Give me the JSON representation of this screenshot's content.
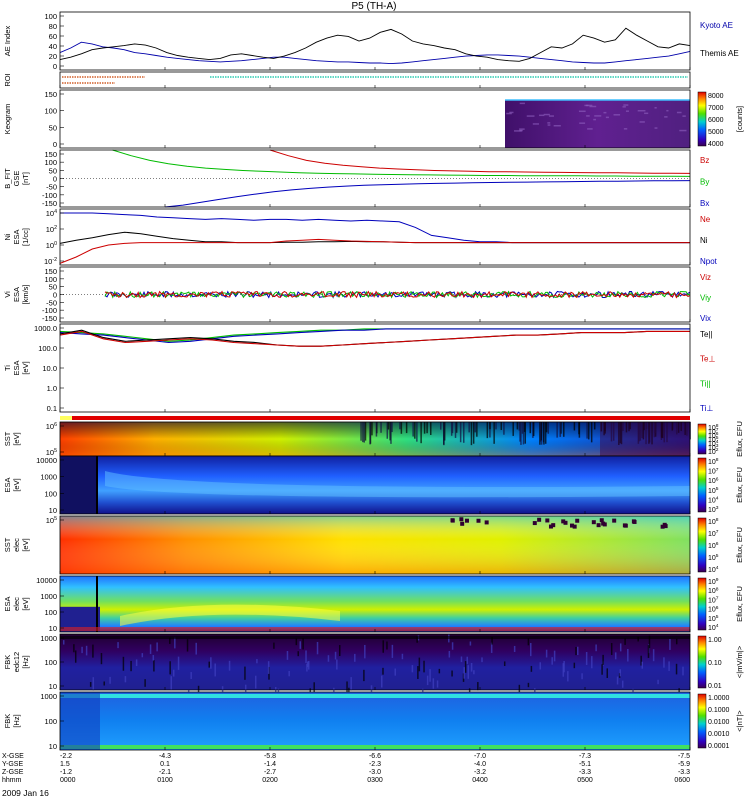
{
  "title": "P5 (TH-A)",
  "chart_data": {
    "type": "multi-panel time series / spectrogram",
    "title": "P5 (TH-A)",
    "x_time_ticks": [
      "0000",
      "0100",
      "0200",
      "0300",
      "0400",
      "0500",
      "0600"
    ],
    "date_label": "2009 Jan 16",
    "ephemeris": {
      "row_labels": [
        "X-GSE",
        "Y-GSE",
        "Z-GSE",
        "hhmm"
      ],
      "columns": [
        {
          "x": "-2.2",
          "y": "1.5",
          "z": "-1.2",
          "t": "0000"
        },
        {
          "x": "-4.3",
          "y": "0.1",
          "z": "-2.1",
          "t": "0100"
        },
        {
          "x": "-5.8",
          "y": "-1.4",
          "z": "-2.7",
          "t": "0200"
        },
        {
          "x": "-6.6",
          "y": "-2.3",
          "z": "-3.0",
          "t": "0300"
        },
        {
          "x": "-7.0",
          "y": "-4.0",
          "z": "-3.2",
          "t": "0400"
        },
        {
          "x": "-7.3",
          "y": "-5.1",
          "z": "-3.3",
          "t": "0500"
        },
        {
          "x": "-7.5",
          "y": "-5.9",
          "z": "-3.3",
          "t": "0600"
        }
      ]
    },
    "panels": [
      {
        "id": "ae",
        "ylabel": [
          "AE Index"
        ],
        "yticks": [
          "100",
          "80",
          "60",
          "40",
          "20",
          "0"
        ],
        "ylim": [
          0,
          100
        ],
        "series": [
          {
            "name": "Kyoto AE",
            "color": "#0000aa",
            "values": [
              30,
              38,
              48,
              45,
              40,
              38,
              35,
              30,
              28,
              25,
              22,
              20,
              18,
              16,
              15,
              14,
              15,
              16,
              18,
              20,
              22,
              22,
              20,
              18,
              16,
              15,
              14,
              14,
              13,
              12,
              12,
              11,
              12,
              14,
              16,
              18,
              20,
              22,
              24,
              25,
              26,
              26,
              25,
              24,
              22,
              20,
              18,
              16,
              14,
              13,
              12,
              12,
              14,
              16,
              18,
              20,
              22,
              24,
              28,
              32
            ]
          },
          {
            "name": "Themis AE",
            "color": "#000000",
            "values": [
              18,
              22,
              28,
              35,
              38,
              40,
              42,
              45,
              43,
              38,
              30,
              25,
              22,
              20,
              18,
              20,
              26,
              28,
              25,
              22,
              20,
              24,
              30,
              38,
              48,
              55,
              60,
              58,
              50,
              55,
              65,
              70,
              62,
              50,
              45,
              42,
              38,
              35,
              28,
              24,
              22,
              18,
              16,
              15,
              20,
              30,
              40,
              38,
              45,
              60,
              55,
              48,
              52,
              72,
              60,
              50,
              40,
              38,
              45,
              42
            ]
          }
        ]
      },
      {
        "id": "roi",
        "ylabel": [
          "ROI"
        ]
      },
      {
        "id": "keogram",
        "ylabel": [
          "Keogram"
        ],
        "yticks": [
          "150",
          "100",
          "50",
          "0"
        ],
        "colorbar": {
          "ticks": [
            "8000",
            "7000",
            "6000",
            "5000",
            "4000"
          ],
          "label": "[counts]"
        }
      },
      {
        "id": "bfit",
        "ylabel": [
          "B_FIT",
          "GSE",
          "[nT]"
        ],
        "yticks": [
          "150",
          "100",
          "50",
          "0",
          "-50",
          "-100",
          "-150"
        ],
        "ylim": [
          -150,
          150
        ],
        "legend": [
          {
            "name": "Bz",
            "color": "#cc0000"
          },
          {
            "name": "By",
            "color": "#00bb00"
          },
          {
            "name": "Bx",
            "color": "#0000bb"
          }
        ],
        "series": [
          {
            "name": "Bz",
            "start_time": "0200",
            "values": [
              150,
              120,
              95,
              80,
              70,
              62,
              55,
              50,
              46,
              42,
              40,
              38,
              36,
              35,
              34,
              33,
              32,
              31,
              30,
              30,
              29,
              28,
              28,
              27
            ]
          },
          {
            "name": "By",
            "start_time": "0030",
            "values": [
              150,
              120,
              95,
              78,
              65,
              55,
              48,
              42,
              38,
              34,
              30,
              28,
              26,
              24,
              22,
              21,
              20,
              19,
              18,
              17,
              16,
              16,
              15,
              15,
              14,
              14,
              13,
              13,
              12,
              12,
              12,
              11
            ]
          },
          {
            "name": "Bx",
            "start_time": "0100",
            "values": [
              -150,
              -140,
              -125,
              -110,
              -95,
              -82,
              -70,
              -60,
              -52,
              -45,
              -40,
              -36,
              -33,
              -30,
              -28,
              -26,
              -24,
              -22,
              -21,
              -20,
              -19,
              -18,
              -17,
              -16,
              -15,
              -14,
              -13,
              -12,
              -12,
              -11
            ]
          }
        ]
      },
      {
        "id": "density",
        "ylabel": [
          "Ni",
          "ESA",
          "[1/cc]"
        ],
        "yticks": [
          "10^4",
          "10^2",
          "10^0",
          "10^-2"
        ],
        "ylim": [
          -2.5,
          4.5
        ],
        "legend": [
          {
            "name": "Ne",
            "color": "#cc0000"
          },
          {
            "name": "Ni",
            "color": "#000000"
          },
          {
            "name": "Npot",
            "color": "#0000bb"
          }
        ],
        "series": [
          {
            "name": "Npot",
            "values": [
              4,
              4,
              4,
              3.9,
              3.8,
              3.7,
              3.5,
              3.4,
              3.3,
              3.2,
              3.3,
              3.2,
              3.1,
              3.2,
              3.2,
              3.1,
              3.2,
              3.1,
              3.0,
              3.1,
              3.0,
              2.9,
              2.2,
              1.2,
              0.9,
              0.6,
              0.4,
              0.4,
              0.3,
              0.3,
              0.3,
              0.3,
              0.3,
              0.3,
              0.3,
              0.3,
              0.3,
              0.3,
              0.3,
              0.3
            ]
          },
          {
            "name": "Ni",
            "values": [
              0.2,
              0.6,
              0.9,
              1.3,
              1.6,
              1.4,
              1.1,
              0.8,
              0.6,
              0.4,
              0.4,
              0.3,
              0.3,
              0.3,
              0.35,
              0.35,
              0.4,
              0.4,
              0.45,
              0.4,
              0.4,
              0.35,
              0.3,
              0.3,
              0.3,
              0.3,
              0.3,
              0.3,
              0.3,
              0.3,
              0.3,
              0.3,
              0.3,
              0.3,
              0.3,
              0.3,
              0.3,
              0.3,
              0.3,
              0.3
            ]
          },
          {
            "name": "Ne",
            "values": [
              -2.3,
              -1.5,
              -0.5,
              0.0,
              0.2,
              0.3,
              0.3,
              0.3,
              0.3,
              0.3,
              0.3,
              0.3,
              0.3,
              0.3,
              0.5,
              0.6,
              0.7,
              0.6,
              0.5,
              0.45,
              0.4,
              0.35,
              0.3,
              0.3,
              0.3,
              0.3,
              0.3,
              0.3,
              0.3,
              0.3,
              0.3,
              0.3,
              0.3,
              0.3,
              0.3,
              0.3,
              0.3,
              0.3,
              0.3,
              0.3
            ]
          }
        ]
      },
      {
        "id": "velocity",
        "ylabel": [
          "Vi",
          "ESA",
          "[km/s]"
        ],
        "yticks": [
          "150",
          "100",
          "50",
          "0",
          "-50",
          "-100",
          "-150"
        ],
        "ylim": [
          -150,
          150
        ],
        "legend": [
          {
            "name": "Viz",
            "color": "#cc0000"
          },
          {
            "name": "Viy",
            "color": "#00bb00"
          },
          {
            "name": "Vix",
            "color": "#0000bb"
          }
        ]
      },
      {
        "id": "temperature",
        "ylabel": [
          "Ti",
          "ESA",
          "[eV]"
        ],
        "yticks": [
          "1000.0",
          "100.0",
          "10.0",
          "1.0",
          "0.1"
        ],
        "ylim": [
          -1.3,
          3.4
        ],
        "legend": [
          {
            "name": "Te||",
            "color": "#000000"
          },
          {
            "name": "Te⊥",
            "color": "#cc0000"
          },
          {
            "name": "Ti||",
            "color": "#00bb00"
          },
          {
            "name": "Ti⊥",
            "color": "#0000bb"
          }
        ],
        "series": [
          {
            "name": "Ti||",
            "values": [
              2.8,
              2.7,
              2.6,
              2.4,
              2.2,
              2.0,
              2.1,
              2.3,
              2.5,
              2.6,
              2.7,
              2.8,
              2.9,
              2.9,
              3.0,
              3.0,
              3.0,
              3.0,
              3.0,
              3.0,
              3.0,
              3.0,
              3.0,
              3.0,
              3.0,
              3.0,
              3.0,
              3.0,
              3.0,
              3.0
            ]
          },
          {
            "name": "Ti⊥",
            "values": [
              2.7,
              2.6,
              2.5,
              2.3,
              2.1,
              1.9,
              2.0,
              2.2,
              2.4,
              2.5,
              2.6,
              2.7,
              2.8,
              2.9,
              2.9,
              3.0,
              3.0,
              3.0,
              3.0,
              3.0,
              3.0,
              3.0,
              3.0,
              3.0,
              3.0,
              3.0,
              3.0,
              3.0,
              3.0,
              3.0
            ]
          },
          {
            "name": "Te||",
            "values": [
              2.6,
              2.9,
              2.3,
              2.0,
              2.1,
              2.2,
              2.3,
              2.2,
              2.0,
              1.9,
              1.7,
              1.6,
              1.6,
              1.7,
              1.8,
              1.9,
              2.0,
              2.1,
              2.2,
              2.3,
              2.4,
              2.5,
              2.5,
              2.6,
              2.7,
              2.7,
              2.7,
              2.8,
              2.8,
              2.8
            ]
          },
          {
            "name": "Te⊥",
            "values": [
              2.5,
              2.8,
              2.2,
              1.9,
              2.0,
              2.1,
              2.2,
              2.1,
              1.9,
              1.8,
              1.7,
              1.6,
              1.6,
              1.7,
              1.8,
              1.9,
              2.0,
              2.1,
              2.2,
              2.3,
              2.4,
              2.5,
              2.5,
              2.6,
              2.7,
              2.7,
              2.7,
              2.8,
              2.8,
              2.8
            ]
          }
        ]
      },
      {
        "id": "sst_ion",
        "ylabel": [
          "SST",
          "[eV]"
        ],
        "yticks": [
          "10^6",
          "10^5"
        ],
        "colorbar": {
          "ticks": [
            "10^8",
            "10^7",
            "10^6",
            "10^5",
            "10^4",
            "10^3",
            "10^2"
          ],
          "label": "Eflux, EFU"
        }
      },
      {
        "id": "esa_ion",
        "ylabel": [
          "ESA",
          "[eV]"
        ],
        "yticks": [
          "10000",
          "1000",
          "100",
          "10"
        ],
        "colorbar": {
          "ticks": [
            "10^8",
            "10^7",
            "10^6",
            "10^5",
            "10^4",
            "10^3"
          ],
          "label": "Eflux, EFU"
        }
      },
      {
        "id": "sst_elec",
        "ylabel": [
          "SST",
          "elec",
          "[eV]"
        ],
        "yticks": [
          "10^5"
        ],
        "colorbar": {
          "ticks": [
            "10^8",
            "10^7",
            "10^6",
            "10^5",
            "10^4"
          ],
          "label": "Eflux, EFU"
        }
      },
      {
        "id": "esa_elec",
        "ylabel": [
          "ESA",
          "elec",
          "[eV]"
        ],
        "yticks": [
          "10000",
          "1000",
          "100",
          "10"
        ],
        "colorbar": {
          "ticks": [
            "10^9",
            "10^8",
            "10^7",
            "10^6",
            "10^5",
            "10^4"
          ],
          "label": "Eflux, EFU"
        }
      },
      {
        "id": "fbk_e",
        "ylabel": [
          "FBK",
          "edc12",
          "[Hz]"
        ],
        "yticks": [
          "1000",
          "100",
          "10"
        ],
        "colorbar": {
          "ticks": [
            "1.00",
            "0.10",
            "0.01"
          ],
          "label": "<|mV/m|>"
        }
      },
      {
        "id": "fbk_b",
        "ylabel": [
          "FBK",
          "[Hz]"
        ],
        "yticks": [
          "1000",
          "100",
          "10"
        ],
        "colorbar": {
          "ticks": [
            "1.0000",
            "0.1000",
            "0.0100",
            "0.0010",
            "0.0001"
          ],
          "label": "<|nT|>"
        }
      }
    ]
  }
}
